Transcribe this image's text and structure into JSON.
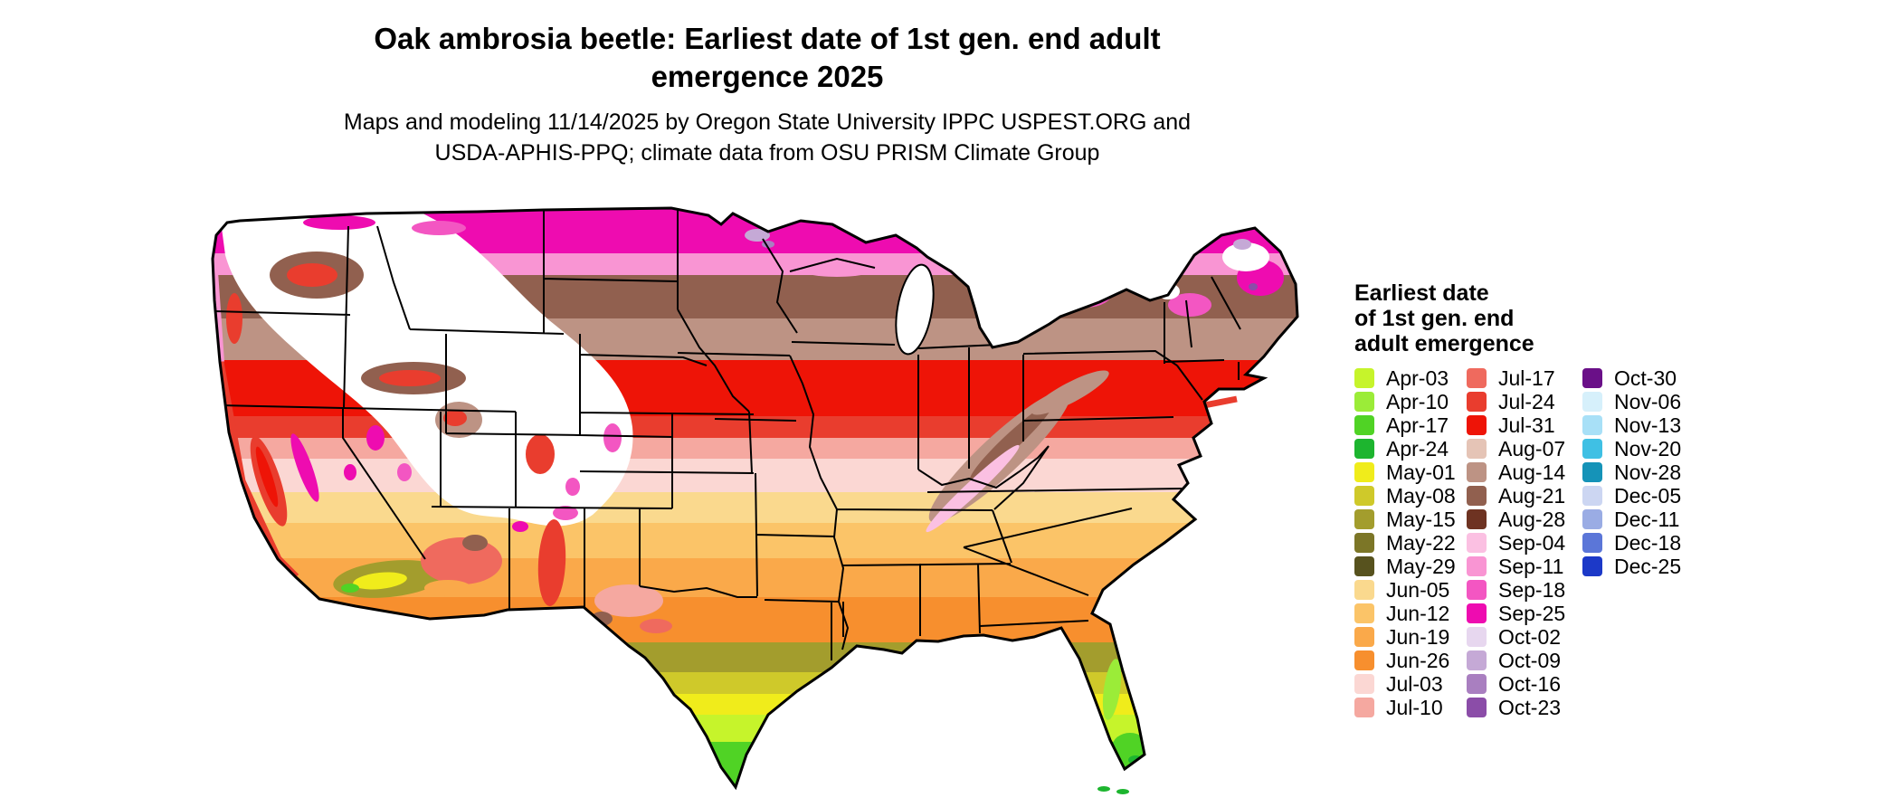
{
  "title": {
    "line1": "Oak ambrosia beetle: Earliest date of 1st gen. end adult",
    "line2": "emergence 2025"
  },
  "subtitle": {
    "line1": "Maps and modeling 11/14/2025 by Oregon State University IPPC USPEST.ORG and",
    "line2": "USDA-APHIS-PPQ; climate data from OSU PRISM Climate Group"
  },
  "legend": {
    "title_lines": [
      "Earliest date",
      "of 1st gen. end",
      "adult emergence"
    ],
    "columns": [
      {
        "entries": [
          {
            "label": "Apr-03",
            "color": "#c6f42b"
          },
          {
            "label": "Apr-10",
            "color": "#9bec38"
          },
          {
            "label": "Apr-17",
            "color": "#50d325"
          },
          {
            "label": "Apr-24",
            "color": "#1db52f"
          },
          {
            "label": "May-01",
            "color": "#f0ec1b"
          },
          {
            "label": "May-08",
            "color": "#cfc92a"
          },
          {
            "label": "May-15",
            "color": "#a39d2d"
          },
          {
            "label": "May-22",
            "color": "#7c7627"
          },
          {
            "label": "May-29",
            "color": "#57521e"
          },
          {
            "label": "Jun-05",
            "color": "#fad98e"
          },
          {
            "label": "Jun-12",
            "color": "#fbc468"
          },
          {
            "label": "Jun-19",
            "color": "#faa94a"
          },
          {
            "label": "Jun-26",
            "color": "#f78f2e"
          },
          {
            "label": "Jul-03",
            "color": "#fbd7d3"
          },
          {
            "label": "Jul-10",
            "color": "#f5a8a0"
          }
        ]
      },
      {
        "entries": [
          {
            "label": "Jul-17",
            "color": "#ef6a5e"
          },
          {
            "label": "Jul-24",
            "color": "#e93d2e"
          },
          {
            "label": "Jul-31",
            "color": "#ee1407"
          },
          {
            "label": "Aug-07",
            "color": "#e5c4b6"
          },
          {
            "label": "Aug-14",
            "color": "#bd9384"
          },
          {
            "label": "Aug-21",
            "color": "#91604f"
          },
          {
            "label": "Aug-28",
            "color": "#6e3322"
          },
          {
            "label": "Sep-04",
            "color": "#fbc0e2"
          },
          {
            "label": "Sep-11",
            "color": "#f995d3"
          },
          {
            "label": "Sep-18",
            "color": "#f356c2"
          },
          {
            "label": "Sep-25",
            "color": "#ee0cb0"
          },
          {
            "label": "Oct-02",
            "color": "#e7d7ef"
          },
          {
            "label": "Oct-09",
            "color": "#c5a9d6"
          },
          {
            "label": "Oct-16",
            "color": "#a97fc0"
          },
          {
            "label": "Oct-23",
            "color": "#8b4da8"
          }
        ]
      },
      {
        "entries": [
          {
            "label": "Oct-30",
            "color": "#6a1088"
          },
          {
            "label": "Nov-06",
            "color": "#d6f0fb"
          },
          {
            "label": "Nov-13",
            "color": "#a8e0f7"
          },
          {
            "label": "Nov-20",
            "color": "#3fc0e4"
          },
          {
            "label": "Nov-28",
            "color": "#1593b8"
          },
          {
            "label": "Dec-05",
            "color": "#ccd6f2"
          },
          {
            "label": "Dec-11",
            "color": "#9aace4"
          },
          {
            "label": "Dec-18",
            "color": "#5b76d8"
          },
          {
            "label": "Dec-25",
            "color": "#1c39c8"
          }
        ]
      }
    ]
  }
}
